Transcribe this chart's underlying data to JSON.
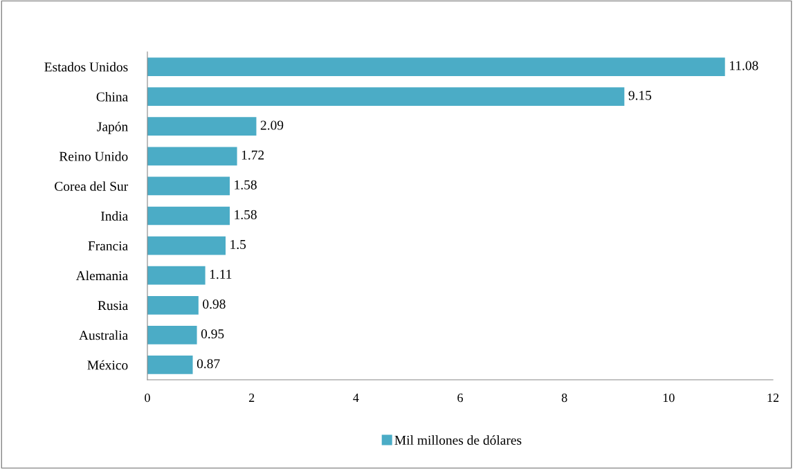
{
  "chart_data": {
    "type": "bar",
    "orientation": "horizontal",
    "categories": [
      "Estados Unidos",
      "China",
      "Japón",
      "Reino Unido",
      "Corea del Sur",
      "India",
      "Francia",
      "Alemania",
      "Rusia",
      "Australia",
      "México"
    ],
    "series": [
      {
        "name": "Mil millones de dólares",
        "color": "#4bacc6",
        "values": [
          11.08,
          9.15,
          2.09,
          1.72,
          1.58,
          1.58,
          1.5,
          1.11,
          0.98,
          0.95,
          0.87
        ]
      }
    ],
    "xlim": [
      0,
      12
    ],
    "xticks": [
      0,
      2,
      4,
      6,
      8,
      10,
      12
    ],
    "grid": false,
    "legend": "bottom",
    "data_labels": true
  }
}
